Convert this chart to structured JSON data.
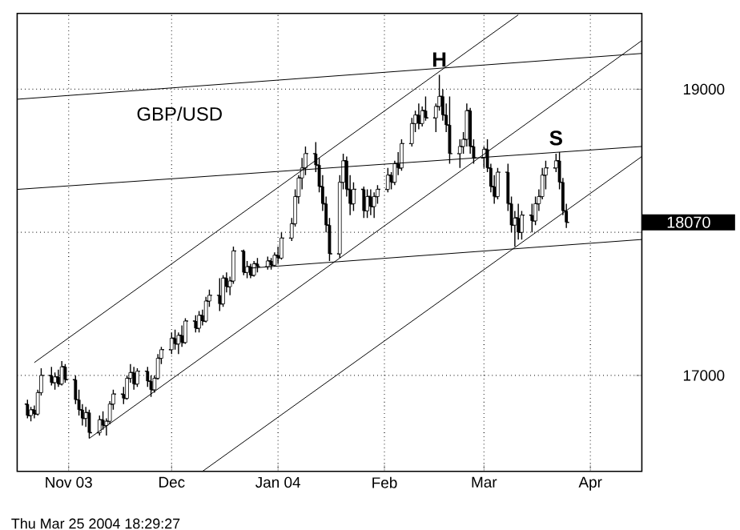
{
  "chart_data": {
    "type": "candlestick",
    "title": "GBP/USD",
    "color": "#000000",
    "x": [
      "2003-10-20",
      "2003-10-21",
      "2003-10-22",
      "2003-10-23",
      "2003-10-24",
      "2003-10-27",
      "2003-10-28",
      "2003-10-29",
      "2003-10-30",
      "2003-10-31",
      "2003-11-03",
      "2003-11-04",
      "2003-11-05",
      "2003-11-06",
      "2003-11-07",
      "2003-11-10",
      "2003-11-11",
      "2003-11-12",
      "2003-11-13",
      "2003-11-14",
      "2003-11-17",
      "2003-11-18",
      "2003-11-19",
      "2003-11-20",
      "2003-11-21",
      "2003-11-24",
      "2003-11-25",
      "2003-11-26",
      "2003-11-27",
      "2003-11-28",
      "2003-12-01",
      "2003-12-02",
      "2003-12-03",
      "2003-12-04",
      "2003-12-05",
      "2003-12-08",
      "2003-12-09",
      "2003-12-10",
      "2003-12-11",
      "2003-12-12",
      "2003-12-15",
      "2003-12-16",
      "2003-12-17",
      "2003-12-18",
      "2003-12-19",
      "2003-12-22",
      "2003-12-23",
      "2003-12-24",
      "2003-12-25",
      "2003-12-26",
      "2003-12-29",
      "2003-12-30",
      "2003-12-31",
      "2004-01-01",
      "2004-01-02",
      "2004-01-05",
      "2004-01-06",
      "2004-01-07",
      "2004-01-08",
      "2004-01-09",
      "2004-01-12",
      "2004-01-13",
      "2004-01-14",
      "2004-01-15",
      "2004-01-16",
      "2004-01-19",
      "2004-01-20",
      "2004-01-21",
      "2004-01-22",
      "2004-01-23",
      "2004-01-26",
      "2004-01-27",
      "2004-01-28",
      "2004-01-29",
      "2004-01-30",
      "2004-02-02",
      "2004-02-03",
      "2004-02-04",
      "2004-02-05",
      "2004-02-06",
      "2004-02-09",
      "2004-02-10",
      "2004-02-11",
      "2004-02-12",
      "2004-02-13",
      "2004-02-16",
      "2004-02-17",
      "2004-02-18",
      "2004-02-19",
      "2004-02-20",
      "2004-02-23",
      "2004-02-24",
      "2004-02-25",
      "2004-02-26",
      "2004-02-27",
      "2004-03-01",
      "2004-03-02",
      "2004-03-03",
      "2004-03-04",
      "2004-03-05",
      "2004-03-08",
      "2004-03-09",
      "2004-03-10",
      "2004-03-11",
      "2004-03-12",
      "2004-03-15",
      "2004-03-16",
      "2004-03-17",
      "2004-03-18",
      "2004-03-19",
      "2004-03-22",
      "2004-03-23",
      "2004-03-24",
      "2004-03-25"
    ],
    "ohlc": [
      [
        16800,
        16830,
        16700,
        16720
      ],
      [
        16720,
        16780,
        16680,
        16760
      ],
      [
        16760,
        16790,
        16700,
        16730
      ],
      [
        16730,
        16900,
        16720,
        16880
      ],
      [
        16880,
        17050,
        16860,
        17000
      ],
      [
        17000,
        17060,
        16930,
        16950
      ],
      [
        16950,
        17020,
        16900,
        16990
      ],
      [
        16990,
        17040,
        16920,
        16940
      ],
      [
        16940,
        17100,
        16930,
        17060
      ],
      [
        17060,
        17080,
        16950,
        16970
      ],
      [
        16970,
        17000,
        16800,
        16830
      ],
      [
        16830,
        16900,
        16720,
        16760
      ],
      [
        16760,
        16800,
        16650,
        16700
      ],
      [
        16700,
        16780,
        16640,
        16740
      ],
      [
        16740,
        16760,
        16560,
        16600
      ],
      [
        16600,
        16720,
        16580,
        16690
      ],
      [
        16690,
        16750,
        16620,
        16650
      ],
      [
        16650,
        16700,
        16580,
        16680
      ],
      [
        16680,
        16820,
        16660,
        16800
      ],
      [
        16800,
        16900,
        16760,
        16870
      ],
      [
        16870,
        16920,
        16800,
        16840
      ],
      [
        16840,
        17000,
        16830,
        16980
      ],
      [
        16980,
        17080,
        16950,
        17020
      ],
      [
        17020,
        17060,
        16900,
        16940
      ],
      [
        16940,
        17050,
        16920,
        17030
      ],
      [
        17030,
        17060,
        16920,
        16960
      ],
      [
        16960,
        17000,
        16850,
        16900
      ],
      [
        16900,
        17000,
        16880,
        16980
      ],
      [
        16980,
        17150,
        16970,
        17120
      ],
      [
        17120,
        17200,
        17080,
        17180
      ],
      [
        17180,
        17300,
        17150,
        17260
      ],
      [
        17260,
        17320,
        17180,
        17220
      ],
      [
        17220,
        17300,
        17150,
        17280
      ],
      [
        17280,
        17350,
        17200,
        17230
      ],
      [
        17230,
        17400,
        17220,
        17380
      ],
      [
        17380,
        17420,
        17300,
        17330
      ],
      [
        17330,
        17450,
        17300,
        17420
      ],
      [
        17420,
        17460,
        17350,
        17380
      ],
      [
        17380,
        17550,
        17370,
        17520
      ],
      [
        17520,
        17600,
        17480,
        17560
      ],
      [
        17560,
        17680,
        17450,
        17500
      ],
      [
        17500,
        17700,
        17480,
        17680
      ],
      [
        17680,
        17720,
        17580,
        17620
      ],
      [
        17620,
        17690,
        17560,
        17660
      ],
      [
        17660,
        17900,
        17640,
        17870
      ],
      [
        17870,
        17880,
        17700,
        17720
      ],
      [
        17720,
        17800,
        17680,
        17760
      ],
      [
        17760,
        17780,
        17680,
        17700
      ],
      [
        17700,
        17800,
        17690,
        17780
      ],
      [
        17780,
        17820,
        17720,
        17760
      ],
      [
        17760,
        17830,
        17740,
        17800
      ],
      [
        17800,
        17820,
        17740,
        17770
      ],
      [
        17770,
        17860,
        17760,
        17840
      ],
      [
        17840,
        17900,
        17780,
        17820
      ],
      [
        17820,
        18000,
        17810,
        17960
      ],
      [
        17960,
        18100,
        17940,
        18060
      ],
      [
        18060,
        18300,
        18040,
        18250
      ],
      [
        18250,
        18400,
        18200,
        18380
      ],
      [
        18380,
        18520,
        18300,
        18450
      ],
      [
        18450,
        18600,
        18400,
        18550
      ],
      [
        18550,
        18630,
        18420,
        18470
      ],
      [
        18470,
        18520,
        18280,
        18320
      ],
      [
        18320,
        18400,
        18150,
        18200
      ],
      [
        18200,
        18250,
        18000,
        18050
      ],
      [
        18050,
        18100,
        17800,
        17850
      ],
      [
        17850,
        18400,
        17820,
        18350
      ],
      [
        18350,
        18550,
        18300,
        18500
      ],
      [
        18500,
        18530,
        18250,
        18300
      ],
      [
        18300,
        18400,
        18120,
        18200
      ],
      [
        18200,
        18350,
        18150,
        18300
      ],
      [
        18300,
        18320,
        18100,
        18150
      ],
      [
        18150,
        18300,
        18100,
        18250
      ],
      [
        18250,
        18300,
        18120,
        18180
      ],
      [
        18180,
        18280,
        18100,
        18250
      ],
      [
        18250,
        18330,
        18200,
        18300
      ],
      [
        18300,
        18450,
        18280,
        18400
      ],
      [
        18400,
        18420,
        18300,
        18350
      ],
      [
        18350,
        18500,
        18330,
        18480
      ],
      [
        18480,
        18560,
        18400,
        18450
      ],
      [
        18450,
        18650,
        18430,
        18620
      ],
      [
        18620,
        18800,
        18600,
        18760
      ],
      [
        18760,
        18850,
        18700,
        18820
      ],
      [
        18820,
        18900,
        18720,
        18760
      ],
      [
        18760,
        18880,
        18740,
        18850
      ],
      [
        18850,
        18950,
        18780,
        18800
      ],
      [
        18800,
        18900,
        18700,
        18880
      ],
      [
        18880,
        19100,
        18850,
        18950
      ],
      [
        18950,
        19000,
        18780,
        18820
      ],
      [
        18820,
        18900,
        18700,
        18750
      ],
      [
        18750,
        18950,
        18480,
        18550
      ],
      [
        18550,
        18650,
        18450,
        18600
      ],
      [
        18600,
        18700,
        18550,
        18650
      ],
      [
        18650,
        18900,
        18600,
        18850
      ],
      [
        18850,
        18870,
        18550,
        18600
      ],
      [
        18600,
        18650,
        18480,
        18520
      ],
      [
        18520,
        18600,
        18450,
        18580
      ],
      [
        18580,
        18650,
        18420,
        18450
      ],
      [
        18450,
        18480,
        18280,
        18320
      ],
      [
        18320,
        18400,
        18200,
        18250
      ],
      [
        18250,
        18450,
        18230,
        18420
      ],
      [
        18420,
        18480,
        18150,
        18200
      ],
      [
        18200,
        18250,
        18000,
        18050
      ],
      [
        18050,
        18150,
        17900,
        18100
      ],
      [
        18100,
        18200,
        17950,
        18000
      ],
      [
        18000,
        18150,
        17950,
        18120
      ],
      [
        18120,
        18200,
        18000,
        18080
      ],
      [
        18080,
        18250,
        18050,
        18200
      ],
      [
        18200,
        18300,
        18150,
        18250
      ],
      [
        18250,
        18450,
        18230,
        18400
      ],
      [
        18400,
        18500,
        18300,
        18450
      ],
      [
        18450,
        18550,
        18420,
        18500
      ],
      [
        18500,
        18560,
        18300,
        18350
      ],
      [
        18350,
        18380,
        18120,
        18150
      ],
      [
        18150,
        18200,
        18030,
        18070
      ]
    ],
    "series": [
      {
        "type": "line",
        "color": "#000000",
        "x": [
          "2003-10-17",
          "2004-04-16"
        ],
        "values": [
          18930,
          19250
        ]
      },
      {
        "type": "line",
        "color": "#000000",
        "x": [
          "2003-10-17",
          "2004-04-16"
        ],
        "values": [
          18300,
          18600
        ]
      },
      {
        "type": "line",
        "color": "#000000",
        "x": [
          "2003-12-24",
          "2004-04-16"
        ],
        "values": [
          17750,
          17950
        ]
      },
      {
        "type": "line",
        "color": "#000000",
        "x": [
          "2003-10-22",
          "2004-03-11"
        ],
        "values": [
          17090,
          19520
        ]
      },
      {
        "type": "line",
        "color": "#000000",
        "x": [
          "2003-11-07",
          "2004-04-16"
        ],
        "values": [
          16560,
          19340
        ]
      },
      {
        "type": "line",
        "color": "#000000",
        "x": [
          "2003-12-10",
          "2004-04-16"
        ],
        "values": [
          16330,
          18530
        ]
      }
    ],
    "xlim": [
      "2003-10-17",
      "2004-04-16"
    ],
    "ylim": [
      16330,
      19530
    ],
    "xticks": [
      {
        "value": "2003-11-01",
        "label": "Nov  03"
      },
      {
        "value": "2003-12-01",
        "label": "Dec"
      },
      {
        "value": "2004-01-01",
        "label": "Jan  04"
      },
      {
        "value": "2004-02-01",
        "label": "Feb"
      },
      {
        "value": "2004-03-01",
        "label": "Mar"
      },
      {
        "value": "2004-04-01",
        "label": "Apr"
      }
    ],
    "yticks": [
      17000,
      {
        "value": 18000,
        "label": null
      },
      19000
    ],
    "grid": true,
    "annotations": [
      {
        "text": "H",
        "x": "2004-02-17",
        "y": 19100
      },
      {
        "text": "S",
        "x": "2004-03-22",
        "y": 18550
      },
      "18070",
      "Thu Mar 25 2004 18:29:27"
    ]
  }
}
